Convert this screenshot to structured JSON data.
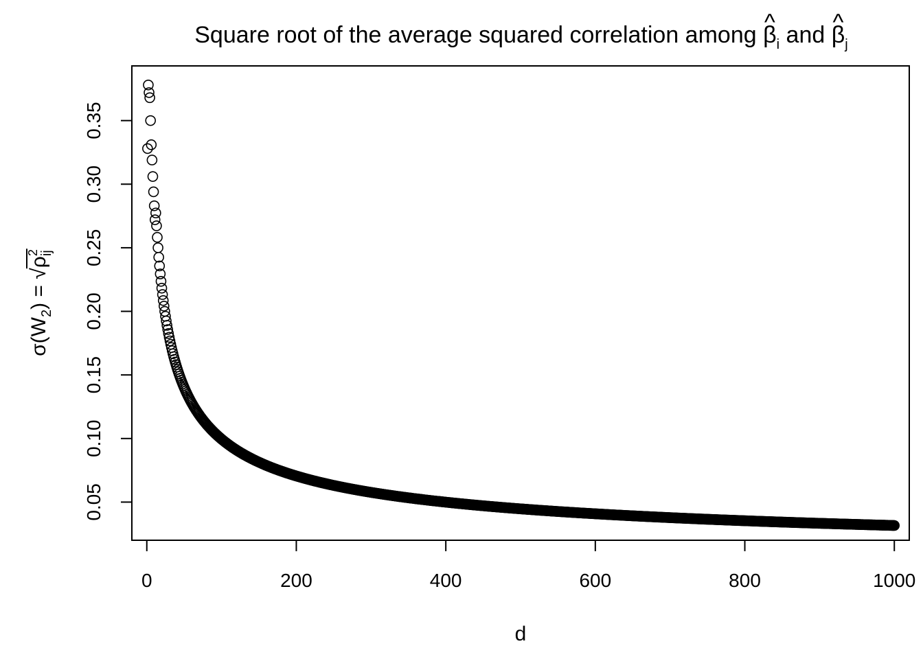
{
  "chart_data": {
    "type": "scatter",
    "title": {
      "text": "Square root of the average squared correlation among ",
      "beta": "β",
      "hat": "^",
      "sub_i": "i",
      "conj": " and ",
      "sub_j": "j"
    },
    "xlabel": "d",
    "ylabel": {
      "sigma": "σ",
      "open": "(W",
      "sub": "2",
      "close": ") = ",
      "sqrt": "√",
      "rho": "ρ",
      "sup": "2",
      "rsub": "ij"
    },
    "xlim": [
      -20,
      1020
    ],
    "ylim": [
      0.02,
      0.393
    ],
    "x_ticks": [
      0,
      200,
      400,
      600,
      800,
      1000
    ],
    "x_tick_labels": [
      "0",
      "200",
      "400",
      "600",
      "800",
      "1000"
    ],
    "y_ticks": [
      0.05,
      0.1,
      0.15,
      0.2,
      0.25,
      0.3,
      0.35
    ],
    "y_tick_labels": [
      "0.05",
      "0.10",
      "0.15",
      "0.20",
      "0.25",
      "0.30",
      "0.35"
    ],
    "grid": false,
    "legend": "none",
    "marker": "open-circle",
    "marker_color": "#000000",
    "series": [
      {
        "x_range": [
          1,
          1000
        ],
        "x_step": 1,
        "y_rule": "1/sqrt(d+1)",
        "initial_points": [
          {
            "x": 1,
            "y": 0.328
          },
          {
            "x": 2,
            "y": 0.378
          },
          {
            "x": 3,
            "y": 0.372
          },
          {
            "x": 4,
            "y": 0.368
          },
          {
            "x": 5,
            "y": 0.35
          },
          {
            "x": 6,
            "y": 0.331
          },
          {
            "x": 7,
            "y": 0.319
          },
          {
            "x": 8,
            "y": 0.306
          },
          {
            "x": 9,
            "y": 0.294
          },
          {
            "x": 10,
            "y": 0.283
          },
          {
            "x": 11,
            "y": 0.272
          }
        ]
      }
    ]
  }
}
